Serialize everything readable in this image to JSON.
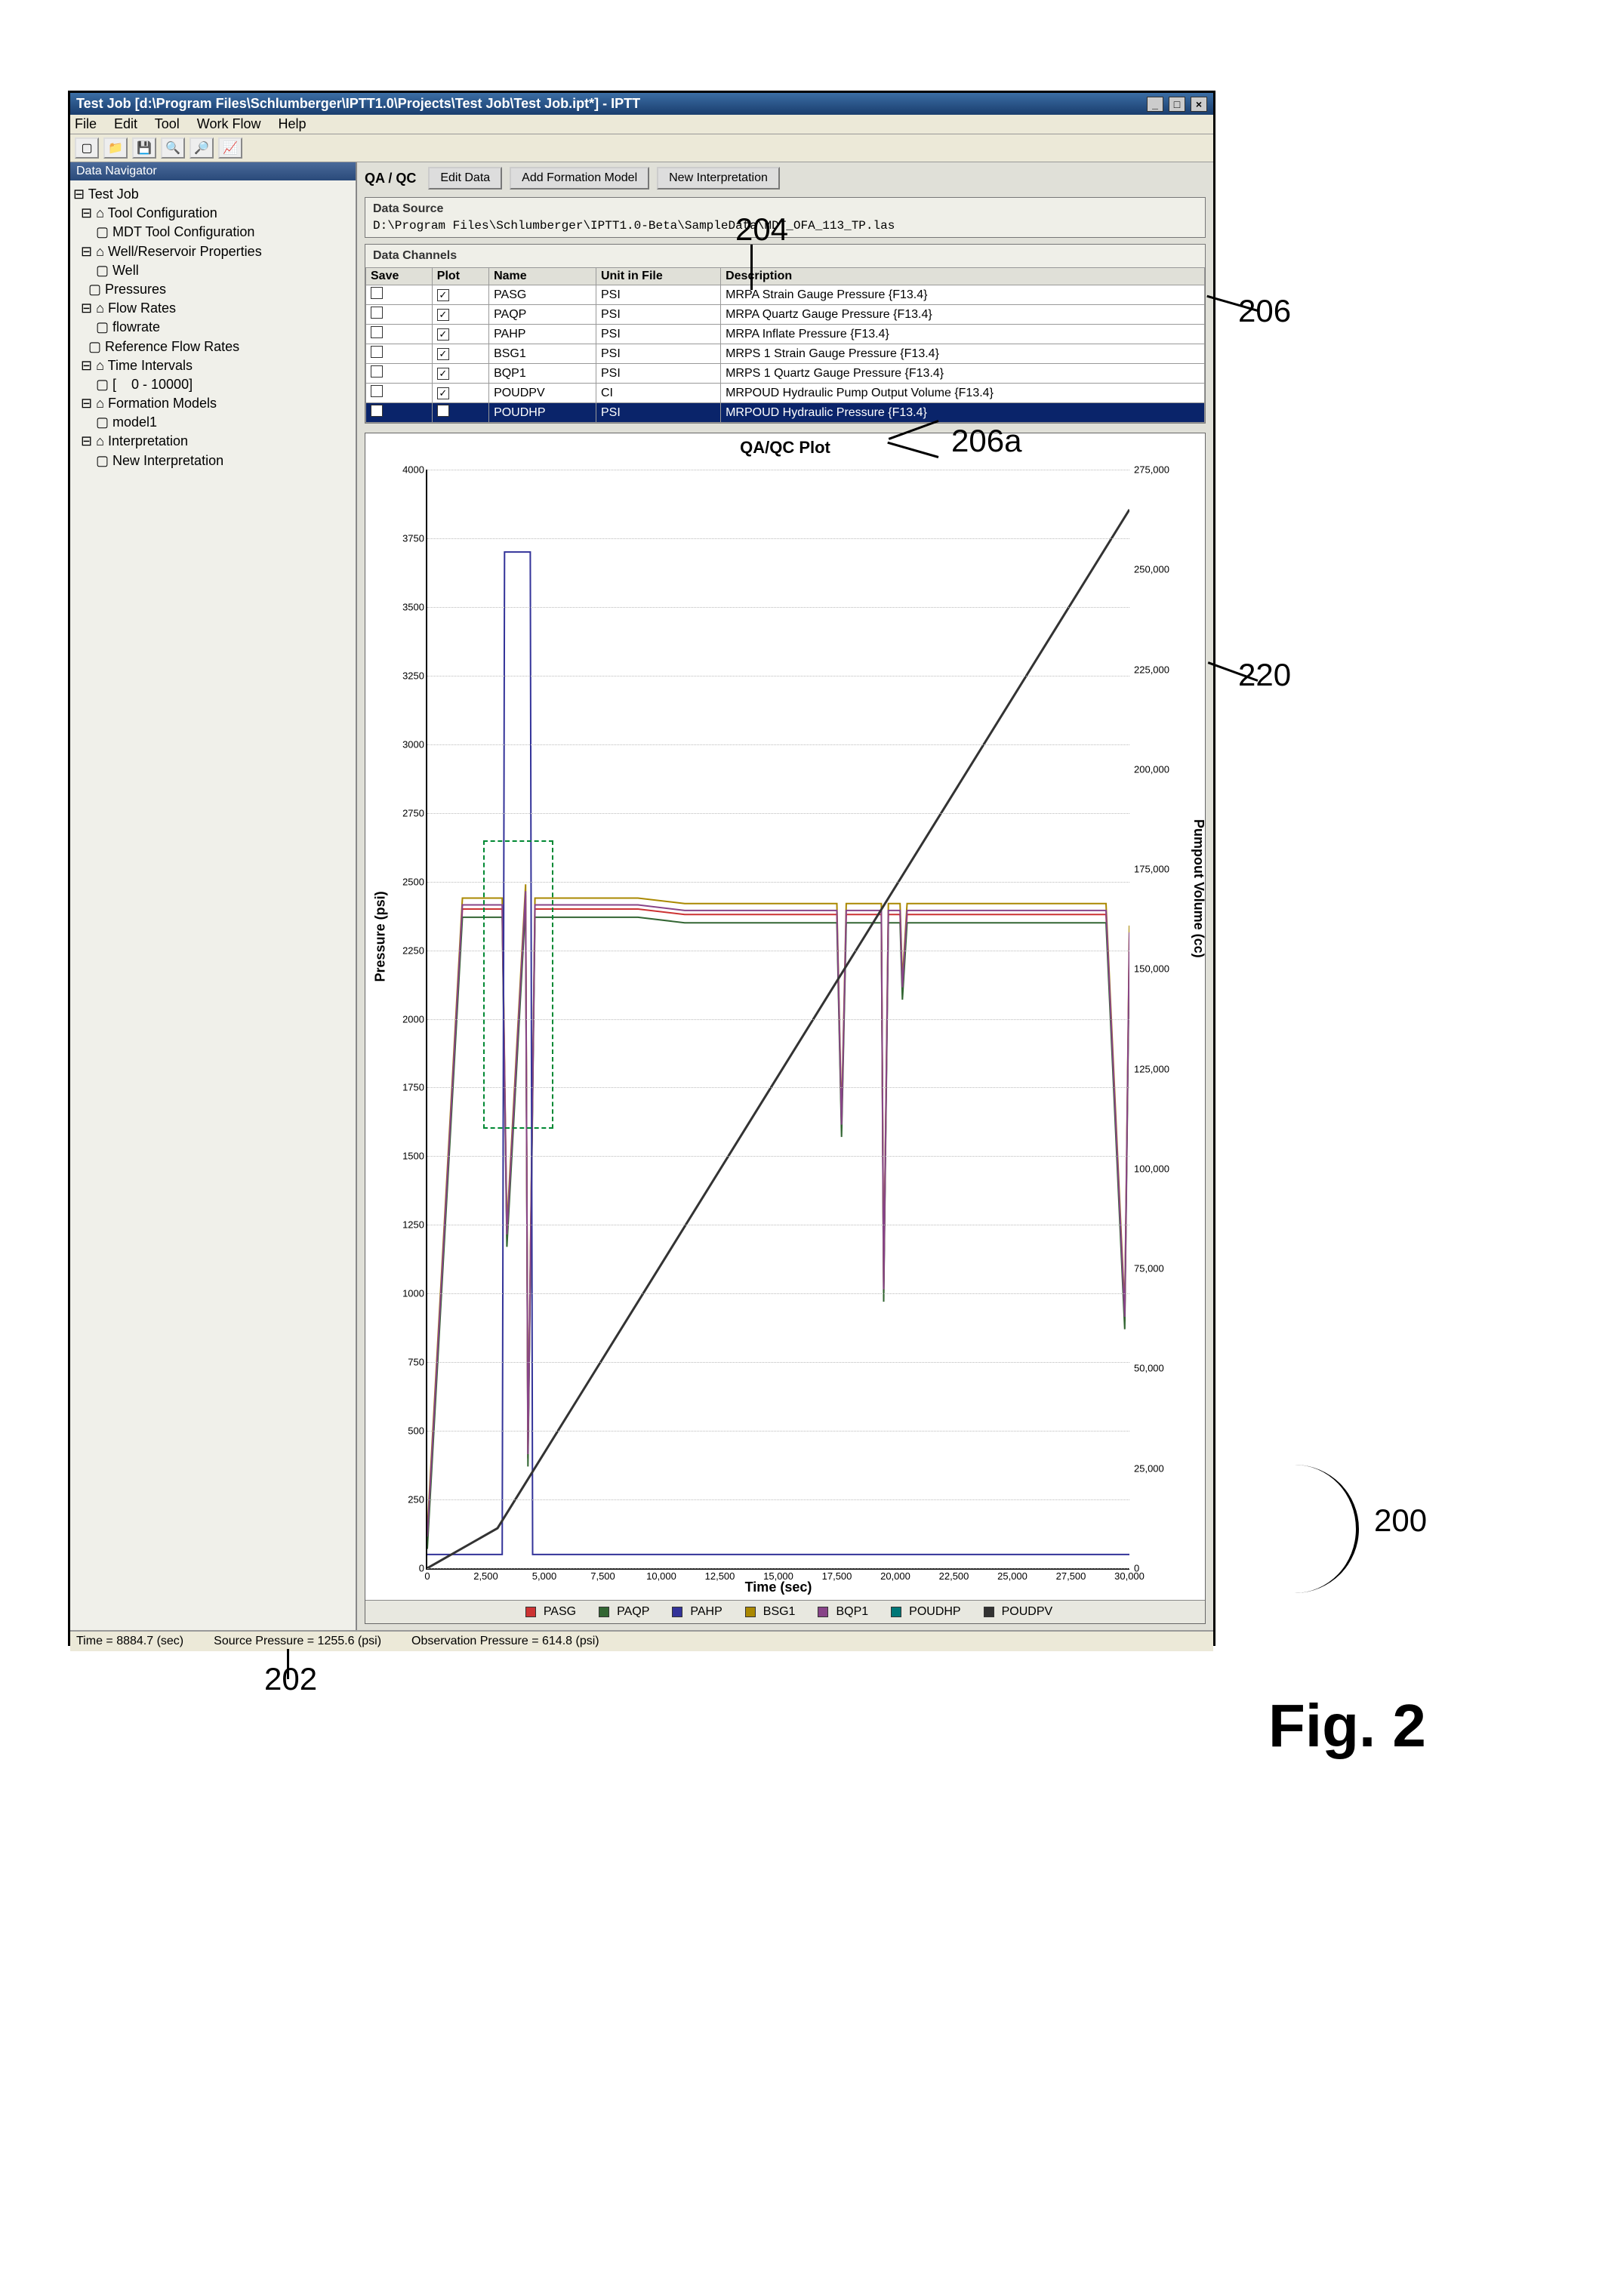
{
  "window": {
    "title": "Test Job [d:\\Program Files\\Schlumberger\\IPTT1.0\\Projects\\Test Job\\Test Job.ipt*] - IPTT",
    "menus": [
      "File",
      "Edit",
      "Tool",
      "Work Flow",
      "Help"
    ],
    "toolbar_icons": [
      "new",
      "open",
      "save",
      "search",
      "zoom",
      "chart"
    ]
  },
  "nav": {
    "title": "Data Navigator",
    "tree_lines": [
      "⊟ Test Job",
      "  ⊟ ⌂ Tool Configuration",
      "      ▢ MDT Tool Configuration",
      "  ⊟ ⌂ Well/Reservoir Properties",
      "      ▢ Well",
      "    ▢ Pressures",
      "  ⊟ ⌂ Flow Rates",
      "      ▢ flowrate",
      "    ▢ Reference Flow Rates",
      "  ⊟ ⌂ Time Intervals",
      "      ▢ [    0 - 10000]",
      "  ⊟ ⌂ Formation Models",
      "      ▢ model1",
      "  ⊟ ⌂ Interpretation",
      "      ▢ New Interpretation"
    ]
  },
  "main": {
    "qa_label": "QA / QC",
    "buttons": {
      "edit": "Edit Data",
      "addfm": "Add Formation Model",
      "newinterp": "New Interpretation"
    },
    "datasource": {
      "label": "Data Source",
      "path": "D:\\Program Files\\Schlumberger\\IPTT1.0-Beta\\SampleData\\MDT_OFA_113_TP.las"
    },
    "channels": {
      "label": "Data Channels",
      "headers": [
        "Save",
        "Plot",
        "Name",
        "Unit in File",
        "Description"
      ],
      "rows": [
        {
          "save": false,
          "plot": true,
          "name": "PASG",
          "unit": "PSI",
          "desc": "MRPA Strain Gauge Pressure {F13.4}",
          "sel": false
        },
        {
          "save": false,
          "plot": true,
          "name": "PAQP",
          "unit": "PSI",
          "desc": "MRPA Quartz Gauge Pressure {F13.4}",
          "sel": false
        },
        {
          "save": false,
          "plot": true,
          "name": "PAHP",
          "unit": "PSI",
          "desc": "MRPA Inflate Pressure {F13.4}",
          "sel": false
        },
        {
          "save": false,
          "plot": true,
          "name": "BSG1",
          "unit": "PSI",
          "desc": "MRPS 1 Strain Gauge Pressure {F13.4}",
          "sel": false
        },
        {
          "save": false,
          "plot": true,
          "name": "BQP1",
          "unit": "PSI",
          "desc": "MRPS 1 Quartz Gauge Pressure {F13.4}",
          "sel": false
        },
        {
          "save": false,
          "plot": true,
          "name": "POUDPV",
          "unit": "CI",
          "desc": "MRPOUD Hydraulic Pump Output Volume {F13.4}",
          "sel": false
        },
        {
          "save": false,
          "plot": false,
          "name": "POUDHP",
          "unit": "PSI",
          "desc": "MRPOUD Hydraulic Pressure {F13.4}",
          "sel": true
        }
      ]
    }
  },
  "plot": {
    "title": "QA/QC Plot",
    "xaxis": {
      "label": "Time (sec)",
      "min": 0,
      "max": 30000,
      "step": 2500
    },
    "yaxis": {
      "label": "Pressure (psi)",
      "min": 0,
      "max": 4000,
      "step": 250
    },
    "yaxis2": {
      "label": "Pumpout Volume (cc)",
      "min": 0,
      "max": 275000,
      "step": 25000
    },
    "legend": [
      {
        "name": "PASG",
        "color": "#cc3333"
      },
      {
        "name": "PAQP",
        "color": "#336633"
      },
      {
        "name": "PAHP",
        "color": "#333399"
      },
      {
        "name": "BSG1",
        "color": "#aa8800"
      },
      {
        "name": "BQP1",
        "color": "#884488"
      },
      {
        "name": "POUDHP",
        "color": "#007777"
      },
      {
        "name": "POUDPV",
        "color": "#333333"
      }
    ],
    "series": {
      "pressure_group": [
        [
          0,
          100
        ],
        [
          1500,
          2400
        ],
        [
          3200,
          2400
        ],
        [
          3400,
          1200
        ],
        [
          4200,
          2450
        ],
        [
          4300,
          400
        ],
        [
          4600,
          2400
        ],
        [
          9000,
          2400
        ],
        [
          11000,
          2380
        ],
        [
          17500,
          2380
        ],
        [
          17700,
          1600
        ],
        [
          17900,
          2380
        ],
        [
          19400,
          2380
        ],
        [
          19500,
          1000
        ],
        [
          19700,
          2380
        ],
        [
          20200,
          2380
        ],
        [
          20300,
          2100
        ],
        [
          20500,
          2380
        ],
        [
          23000,
          2380
        ],
        [
          26000,
          2380
        ],
        [
          29000,
          2380
        ],
        [
          29800,
          900
        ],
        [
          30000,
          2300
        ]
      ],
      "pahp": [
        [
          0,
          50
        ],
        [
          3200,
          50
        ],
        [
          3300,
          3700
        ],
        [
          4400,
          3700
        ],
        [
          4500,
          50
        ],
        [
          30000,
          50
        ]
      ],
      "poudpv_y2": [
        [
          0,
          0
        ],
        [
          3000,
          10000
        ],
        [
          30000,
          265000
        ]
      ],
      "sel_rect": {
        "x0": 2400,
        "y0": 1600,
        "x1": 5400,
        "y1": 2650
      }
    }
  },
  "status": {
    "time": "Time = 8884.7 (sec)",
    "source": "Source Pressure = 1255.6 (psi)",
    "obs": "Observation Pressure = 614.8 (psi)"
  },
  "callouts": {
    "c202": "202",
    "c204": "204",
    "c206": "206",
    "c206a": "206a",
    "c220": "220",
    "c200": "200",
    "fig": "Fig. 2"
  }
}
